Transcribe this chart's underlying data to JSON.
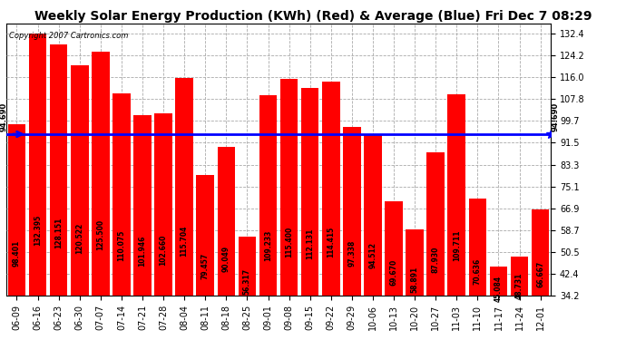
{
  "title": "Weekly Solar Energy Production (KWh) (Red) & Average (Blue) Fri Dec 7 08:29",
  "copyright": "Copyright 2007 Cartronics.com",
  "average": 94.69,
  "average_label": "94.690",
  "categories": [
    "06-09",
    "06-16",
    "06-23",
    "06-30",
    "07-07",
    "07-14",
    "07-21",
    "07-28",
    "08-04",
    "08-11",
    "08-18",
    "08-25",
    "09-01",
    "09-08",
    "09-15",
    "09-22",
    "09-29",
    "10-06",
    "10-13",
    "10-20",
    "10-27",
    "11-03",
    "11-10",
    "11-17",
    "11-24",
    "12-01"
  ],
  "values": [
    98.401,
    132.395,
    128.151,
    120.522,
    125.5,
    110.075,
    101.946,
    102.66,
    115.704,
    79.457,
    90.049,
    56.317,
    109.233,
    115.4,
    112.131,
    114.415,
    97.338,
    94.512,
    69.67,
    58.891,
    87.93,
    109.711,
    70.636,
    45.084,
    48.731,
    66.667
  ],
  "bar_color": "#FF0000",
  "avg_line_color": "#0000FF",
  "background_color": "#FFFFFF",
  "plot_bg_color": "#FFFFFF",
  "grid_color": "#AAAAAA",
  "ylim_min": 34.2,
  "ylim_max": 136.0,
  "yticks": [
    34.2,
    42.4,
    50.5,
    58.7,
    66.9,
    75.1,
    83.3,
    91.5,
    99.7,
    107.8,
    116.0,
    124.2,
    132.4
  ],
  "title_fontsize": 10,
  "tick_fontsize": 7,
  "bar_label_fontsize": 5.5,
  "copyright_fontsize": 6
}
